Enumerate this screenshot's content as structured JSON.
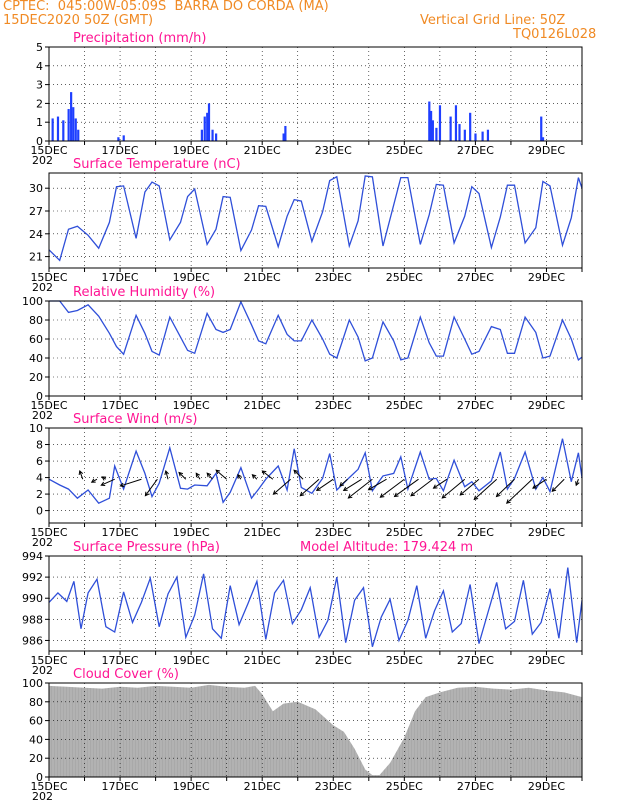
{
  "header": {
    "line1": "CPTEC:  045:00W-05:09S  BARRA DO CORDA (MA)",
    "line2": "15DEC2020 50Z (GMT)",
    "grid_note": "Vertical Grid Line: 50Z",
    "code": "TQ0126L028",
    "year_stub": "202"
  },
  "x_ticks": [
    "15DEC",
    "17DEC",
    "19DEC",
    "21DEC",
    "23DEC",
    "25DEC",
    "27DEC",
    "29DEC"
  ],
  "colors": {
    "line": "#2f4fd9",
    "bar": "#1f3fff",
    "cloud": "#a9a9a9",
    "title": "#ff1493",
    "header": "#f08a24"
  },
  "chart_data": [
    {
      "type": "bar",
      "title": "Precipitation (mm/h)",
      "xlabel": "",
      "ylabel": "",
      "ylim": [
        0,
        5
      ],
      "yticks": [
        0,
        1,
        2,
        3,
        4,
        5
      ],
      "xlim_days": [
        15,
        30
      ],
      "x": [
        15.1,
        15.25,
        15.4,
        15.55,
        15.62,
        15.68,
        15.75,
        15.82,
        16.95,
        17.1,
        19.3,
        19.38,
        19.45,
        19.5,
        19.6,
        19.7,
        21.6,
        21.65,
        25.7,
        25.75,
        25.8,
        25.9,
        26.0,
        26.3,
        26.45,
        26.55,
        26.7,
        26.85,
        27.0,
        27.2,
        27.35,
        28.85,
        28.9
      ],
      "values": [
        1.2,
        1.3,
        1.1,
        1.7,
        2.6,
        1.8,
        1.2,
        0.6,
        0.2,
        0.3,
        0.6,
        1.3,
        1.5,
        2.0,
        0.6,
        0.4,
        0.4,
        0.8,
        2.1,
        1.6,
        1.1,
        0.7,
        1.9,
        1.3,
        1.9,
        0.9,
        0.6,
        1.5,
        0.4,
        0.5,
        0.6,
        1.3,
        0.2
      ]
    },
    {
      "type": "line",
      "title": "Surface Temperature (nC)",
      "xlabel": "",
      "ylabel": "",
      "ylim": [
        19.5,
        32
      ],
      "yticks": [
        21,
        24,
        27,
        30
      ],
      "xlim_days": [
        15,
        30
      ],
      "x": [
        15.0,
        15.3,
        15.55,
        15.8,
        16.1,
        16.4,
        16.7,
        16.9,
        17.1,
        17.45,
        17.7,
        17.9,
        18.1,
        18.4,
        18.7,
        18.9,
        19.1,
        19.45,
        19.7,
        19.9,
        20.1,
        20.4,
        20.7,
        20.9,
        21.1,
        21.45,
        21.7,
        21.9,
        22.1,
        22.4,
        22.7,
        22.9,
        23.1,
        23.45,
        23.7,
        23.9,
        24.1,
        24.4,
        24.7,
        24.9,
        25.1,
        25.45,
        25.7,
        25.9,
        26.1,
        26.4,
        26.7,
        26.9,
        27.1,
        27.45,
        27.7,
        27.9,
        28.1,
        28.4,
        28.7,
        28.9,
        29.1,
        29.45,
        29.7,
        29.9,
        30.0
      ],
      "values": [
        21.9,
        20.5,
        24.6,
        25.0,
        23.8,
        22.1,
        25.5,
        30.2,
        30.3,
        23.4,
        29.5,
        30.8,
        30.3,
        23.2,
        25.5,
        28.9,
        29.9,
        22.6,
        24.6,
        28.9,
        28.8,
        21.8,
        24.5,
        27.7,
        27.6,
        22.3,
        26.3,
        28.5,
        28.3,
        23.0,
        26.9,
        31.0,
        31.5,
        22.4,
        25.7,
        31.6,
        31.5,
        22.4,
        27.8,
        31.4,
        31.4,
        22.6,
        26.5,
        30.5,
        30.4,
        22.8,
        26.3,
        30.2,
        29.3,
        22.2,
        26.2,
        30.4,
        30.4,
        22.8,
        24.8,
        30.9,
        30.3,
        22.5,
        26.1,
        31.4,
        30.0
      ]
    },
    {
      "type": "line",
      "title": "Relative Humidity (%)",
      "xlabel": "",
      "ylabel": "",
      "ylim": [
        0,
        100
      ],
      "yticks": [
        0,
        20,
        40,
        60,
        80,
        100
      ],
      "xlim_days": [
        15,
        30
      ],
      "x": [
        15.0,
        15.3,
        15.55,
        15.8,
        16.1,
        16.4,
        16.7,
        16.9,
        17.1,
        17.45,
        17.7,
        17.9,
        18.1,
        18.4,
        18.7,
        18.9,
        19.1,
        19.45,
        19.7,
        19.9,
        20.1,
        20.4,
        20.7,
        20.9,
        21.1,
        21.45,
        21.7,
        21.9,
        22.1,
        22.4,
        22.7,
        22.9,
        23.1,
        23.45,
        23.7,
        23.9,
        24.1,
        24.4,
        24.7,
        24.9,
        25.1,
        25.45,
        25.7,
        25.9,
        26.1,
        26.4,
        26.7,
        26.9,
        27.1,
        27.45,
        27.7,
        27.9,
        28.1,
        28.4,
        28.7,
        28.9,
        29.1,
        29.45,
        29.7,
        29.9,
        30.0
      ],
      "values": [
        100,
        100,
        88,
        90,
        96,
        84,
        66,
        52,
        44,
        85,
        66,
        47,
        43,
        83,
        62,
        48,
        45,
        87,
        70,
        67,
        70,
        99,
        75,
        58,
        55,
        85,
        65,
        58,
        58,
        80,
        60,
        44,
        40,
        80,
        62,
        37,
        40,
        78,
        58,
        38,
        40,
        83,
        56,
        42,
        42,
        83,
        60,
        44,
        47,
        73,
        70,
        45,
        45,
        83,
        67,
        40,
        42,
        80,
        60,
        38,
        41
      ]
    },
    {
      "type": "line",
      "title": "Surface Wind (m/s)",
      "xlabel": "",
      "ylabel": "",
      "ylim": [
        -1.5,
        10
      ],
      "yticks": [
        0,
        2,
        4,
        6,
        8,
        10
      ],
      "xlim_days": [
        15,
        30
      ],
      "x": [
        15.0,
        15.3,
        15.55,
        15.8,
        16.1,
        16.4,
        16.7,
        16.85,
        17.1,
        17.45,
        17.7,
        17.9,
        18.1,
        18.4,
        18.7,
        18.9,
        19.1,
        19.45,
        19.7,
        19.9,
        20.1,
        20.4,
        20.7,
        20.9,
        21.1,
        21.45,
        21.7,
        21.9,
        22.1,
        22.4,
        22.7,
        22.9,
        23.1,
        23.45,
        23.7,
        23.9,
        24.1,
        24.4,
        24.7,
        24.9,
        25.1,
        25.45,
        25.7,
        25.9,
        26.1,
        26.4,
        26.7,
        26.9,
        27.1,
        27.45,
        27.7,
        27.9,
        28.1,
        28.4,
        28.7,
        28.9,
        29.1,
        29.45,
        29.7,
        29.9,
        30.0
      ],
      "values": [
        3.8,
        3.1,
        2.6,
        1.5,
        2.5,
        0.9,
        1.5,
        5.4,
        2.6,
        7.2,
        4.5,
        1.7,
        3.3,
        7.6,
        2.7,
        2.6,
        3.1,
        3.0,
        4.5,
        1.0,
        2.2,
        5.2,
        1.5,
        2.6,
        3.8,
        5.4,
        2.5,
        7.5,
        2.8,
        2.1,
        3.9,
        6.9,
        2.5,
        4.0,
        5.0,
        7.0,
        2.4,
        4.2,
        4.5,
        6.5,
        2.6,
        7.1,
        3.8,
        3.9,
        2.4,
        6.1,
        2.9,
        3.5,
        2.4,
        3.6,
        7.1,
        2.6,
        3.9,
        7.1,
        2.6,
        4.0,
        2.3,
        8.7,
        3.5,
        7.0,
        4.0
      ],
      "vector_x": [
        15.95,
        16.35,
        16.6,
        16.85,
        17.6,
        18.05,
        18.35,
        18.85,
        19.25,
        19.6,
        20.0,
        20.4,
        20.85,
        21.3,
        21.8,
        22.15,
        22.6,
        23.0,
        23.4,
        23.8,
        24.1,
        24.5,
        25.0,
        25.4,
        25.8,
        26.2,
        26.7,
        27.1,
        27.6,
        28.1,
        28.6,
        29.0,
        29.5,
        29.9
      ],
      "vector_u": [
        0.4,
        0.7,
        0.5,
        1.8,
        2.8,
        1.6,
        0.3,
        0.9,
        0.5,
        0.7,
        1.4,
        0.4,
        0.6,
        1.4,
        2.3,
        1.2,
        2.5,
        2.2,
        1.0,
        2.4,
        3.2,
        2.4,
        3.2,
        3.2,
        2.9,
        1.8,
        3.0,
        2.5,
        3.0,
        2.4,
        3.4,
        1.8,
        1.6,
        0.3
      ],
      "vector_v": [
        -1.1,
        0.4,
        -0.3,
        0.8,
        0.9,
        2.2,
        -1.1,
        -0.9,
        -0.8,
        -0.8,
        -1.2,
        -0.6,
        -0.6,
        -1.1,
        2.0,
        -1.2,
        2.2,
        1.5,
        0.9,
        1.5,
        2.5,
        1.4,
        2.4,
        2.3,
        2.2,
        1.2,
        2.5,
        2.1,
        2.7,
        2.3,
        3.2,
        1.2,
        1.6,
        0.8
      ]
    },
    {
      "type": "line",
      "title": "Surface Pressure (hPa)",
      "annotation": "Model Altitude: 179.424  m",
      "xlabel": "",
      "ylabel": "",
      "ylim": [
        985,
        994
      ],
      "yticks": [
        986,
        988,
        990,
        992,
        994
      ],
      "xlim_days": [
        15,
        30
      ],
      "x": [
        15.0,
        15.25,
        15.5,
        15.7,
        15.9,
        16.1,
        16.35,
        16.6,
        16.85,
        17.1,
        17.35,
        17.6,
        17.85,
        18.1,
        18.35,
        18.6,
        18.85,
        19.1,
        19.35,
        19.6,
        19.85,
        20.1,
        20.35,
        20.6,
        20.85,
        21.1,
        21.35,
        21.6,
        21.85,
        22.1,
        22.35,
        22.6,
        22.85,
        23.1,
        23.35,
        23.6,
        23.85,
        24.1,
        24.35,
        24.6,
        24.85,
        25.1,
        25.35,
        25.6,
        25.85,
        26.1,
        26.35,
        26.6,
        26.85,
        27.1,
        27.35,
        27.6,
        27.85,
        28.1,
        28.35,
        28.6,
        28.85,
        29.1,
        29.35,
        29.6,
        29.85,
        30.0
      ],
      "values": [
        989.6,
        990.5,
        989.7,
        991.6,
        987.1,
        990.5,
        991.8,
        987.3,
        986.8,
        990.6,
        987.7,
        989.6,
        991.9,
        987.3,
        990.4,
        992.0,
        986.3,
        988.4,
        992.3,
        987.1,
        986.2,
        991.2,
        987.5,
        989.5,
        991.6,
        986.1,
        990.5,
        991.7,
        987.6,
        988.9,
        991.0,
        986.3,
        987.9,
        992.0,
        985.8,
        989.8,
        991.0,
        985.4,
        988.2,
        989.9,
        986.0,
        987.9,
        991.2,
        986.2,
        988.8,
        990.7,
        986.8,
        987.6,
        991.3,
        985.7,
        988.6,
        991.5,
        987.1,
        987.8,
        991.7,
        986.6,
        987.7,
        990.9,
        986.2,
        992.9,
        985.8,
        989.8
      ]
    },
    {
      "type": "area",
      "title": "Cloud Cover (%)",
      "xlabel": "",
      "ylabel": "",
      "ylim": [
        0,
        100
      ],
      "yticks": [
        0,
        20,
        40,
        60,
        80,
        100
      ],
      "xlim_days": [
        15,
        30
      ],
      "x": [
        15.0,
        15.5,
        16.0,
        16.5,
        17.0,
        17.5,
        18.0,
        18.5,
        19.0,
        19.5,
        20.0,
        20.5,
        20.8,
        21.0,
        21.3,
        21.6,
        22.0,
        22.5,
        23.0,
        23.3,
        23.6,
        23.9,
        24.1,
        24.3,
        24.6,
        25.0,
        25.3,
        25.6,
        26.0,
        26.5,
        27.0,
        27.5,
        28.0,
        28.5,
        29.0,
        29.5,
        30.0
      ],
      "values": [
        97,
        96,
        95,
        94,
        96,
        95,
        97,
        96,
        95,
        98,
        96,
        95,
        97,
        88,
        70,
        78,
        80,
        72,
        55,
        48,
        30,
        8,
        2,
        2,
        15,
        42,
        70,
        85,
        90,
        95,
        96,
        94,
        93,
        95,
        92,
        90,
        85
      ]
    }
  ]
}
